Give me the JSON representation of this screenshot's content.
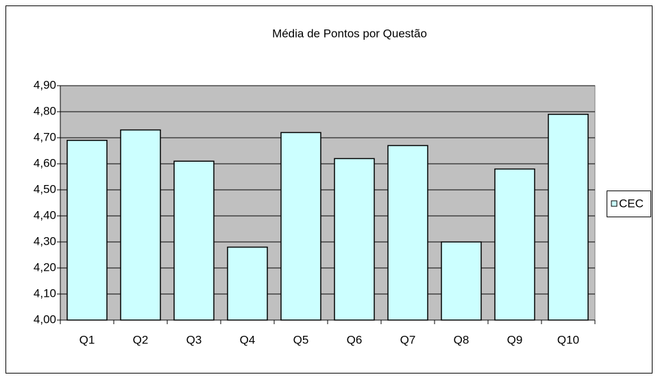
{
  "chart_data": {
    "type": "bar",
    "title": "Média de Pontos por Questão",
    "categories": [
      "Q1",
      "Q2",
      "Q3",
      "Q4",
      "Q5",
      "Q6",
      "Q7",
      "Q8",
      "Q9",
      "Q10"
    ],
    "series": [
      {
        "name": "CEC",
        "color": "#ccffff",
        "values": [
          4.69,
          4.73,
          4.61,
          4.28,
          4.72,
          4.62,
          4.67,
          4.3,
          4.58,
          4.79
        ]
      }
    ],
    "ylim": [
      4.0,
      4.9
    ],
    "yticks": [
      {
        "value": 4.0,
        "label": "4,00"
      },
      {
        "value": 4.1,
        "label": "4,10"
      },
      {
        "value": 4.2,
        "label": "4,20"
      },
      {
        "value": 4.3,
        "label": "4,30"
      },
      {
        "value": 4.4,
        "label": "4,40"
      },
      {
        "value": 4.5,
        "label": "4,50"
      },
      {
        "value": 4.6,
        "label": "4,60"
      },
      {
        "value": 4.7,
        "label": "4,70"
      },
      {
        "value": 4.8,
        "label": "4,80"
      },
      {
        "value": 4.9,
        "label": "4,90"
      }
    ],
    "grid": true,
    "legend": "right",
    "plot_background": "#c0c0c0"
  }
}
